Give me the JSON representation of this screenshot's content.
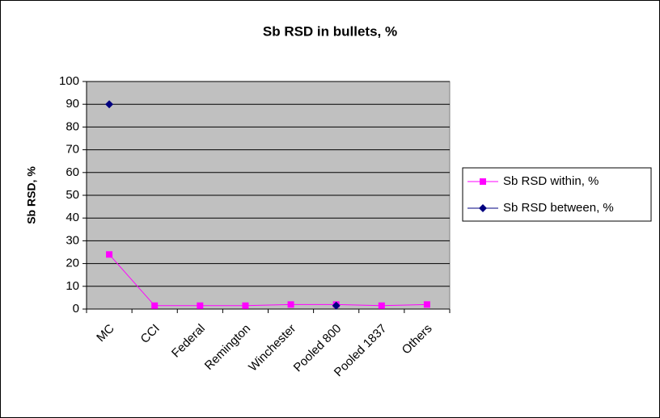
{
  "chart_data": {
    "type": "line",
    "title": "Sb RSD in bullets, %",
    "y_label": "Sb RSD, %",
    "categories": [
      "MC",
      "CCI",
      "Federal",
      "Remington",
      "Winchester",
      "Pooled 800",
      "Pooled 1837",
      "Others"
    ],
    "series": [
      {
        "name": "Sb RSD within, %",
        "color": "#ff00ff",
        "marker": "square",
        "values": [
          24,
          1.5,
          1.5,
          1.5,
          2,
          2,
          1.5,
          2
        ]
      },
      {
        "name": "Sb RSD between, %",
        "color": "#000080",
        "marker": "diamond",
        "values": [
          90,
          null,
          null,
          null,
          null,
          1.5,
          null,
          null
        ]
      }
    ],
    "ylim": [
      0,
      100
    ],
    "yticks": [
      0,
      10,
      20,
      30,
      40,
      50,
      60,
      70,
      80,
      90,
      100
    ],
    "grid": true,
    "plot_background": "#c0c0c0",
    "legend": "right"
  }
}
